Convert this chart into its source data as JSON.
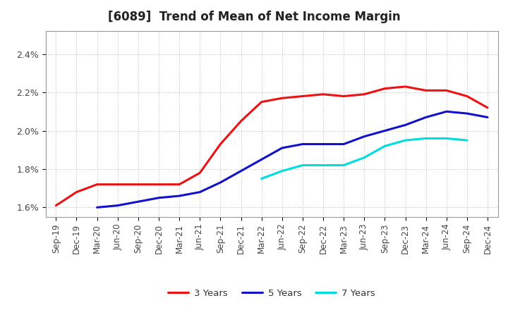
{
  "title": "[6089]  Trend of Mean of Net Income Margin",
  "x_labels": [
    "Sep-19",
    "Dec-19",
    "Mar-20",
    "Jun-20",
    "Sep-20",
    "Dec-20",
    "Mar-21",
    "Jun-21",
    "Sep-21",
    "Dec-21",
    "Mar-22",
    "Jun-22",
    "Sep-22",
    "Dec-22",
    "Mar-23",
    "Jun-23",
    "Sep-23",
    "Dec-23",
    "Mar-24",
    "Jun-24",
    "Sep-24",
    "Dec-24"
  ],
  "series_3y": [
    1.61,
    1.68,
    1.72,
    1.72,
    1.72,
    1.72,
    1.72,
    1.78,
    1.93,
    2.05,
    2.15,
    2.17,
    2.18,
    2.19,
    2.18,
    2.19,
    2.22,
    2.23,
    2.21,
    2.21,
    2.18,
    2.12
  ],
  "series_5y": [
    null,
    null,
    1.6,
    1.61,
    1.63,
    1.65,
    1.66,
    1.68,
    1.73,
    1.79,
    1.85,
    1.91,
    1.93,
    1.93,
    1.93,
    1.97,
    2.0,
    2.03,
    2.07,
    2.1,
    2.09,
    2.07
  ],
  "series_7y": [
    null,
    null,
    null,
    null,
    null,
    null,
    null,
    null,
    null,
    null,
    1.75,
    1.79,
    1.82,
    1.82,
    1.82,
    1.86,
    1.92,
    1.95,
    1.96,
    1.96,
    1.95,
    null
  ],
  "series_10y": [
    null,
    null,
    null,
    null,
    null,
    null,
    null,
    null,
    null,
    null,
    null,
    null,
    null,
    null,
    null,
    null,
    null,
    null,
    null,
    null,
    null,
    null
  ],
  "color_3y": "#ee1111",
  "color_5y": "#1111cc",
  "color_7y": "#00dddd",
  "color_10y": "#007700",
  "ylim": [
    1.55,
    2.52
  ],
  "yticks": [
    1.6,
    1.8,
    2.0,
    2.2,
    2.4
  ],
  "ytick_labels": [
    "1.6%",
    "1.8%",
    "2.0%",
    "2.2%",
    "2.4%"
  ],
  "background_color": "#ffffff",
  "plot_bg_color": "#ffffff",
  "linewidth": 2.2,
  "title_fontsize": 12,
  "tick_fontsize": 8.5,
  "legend_fontsize": 9.5
}
